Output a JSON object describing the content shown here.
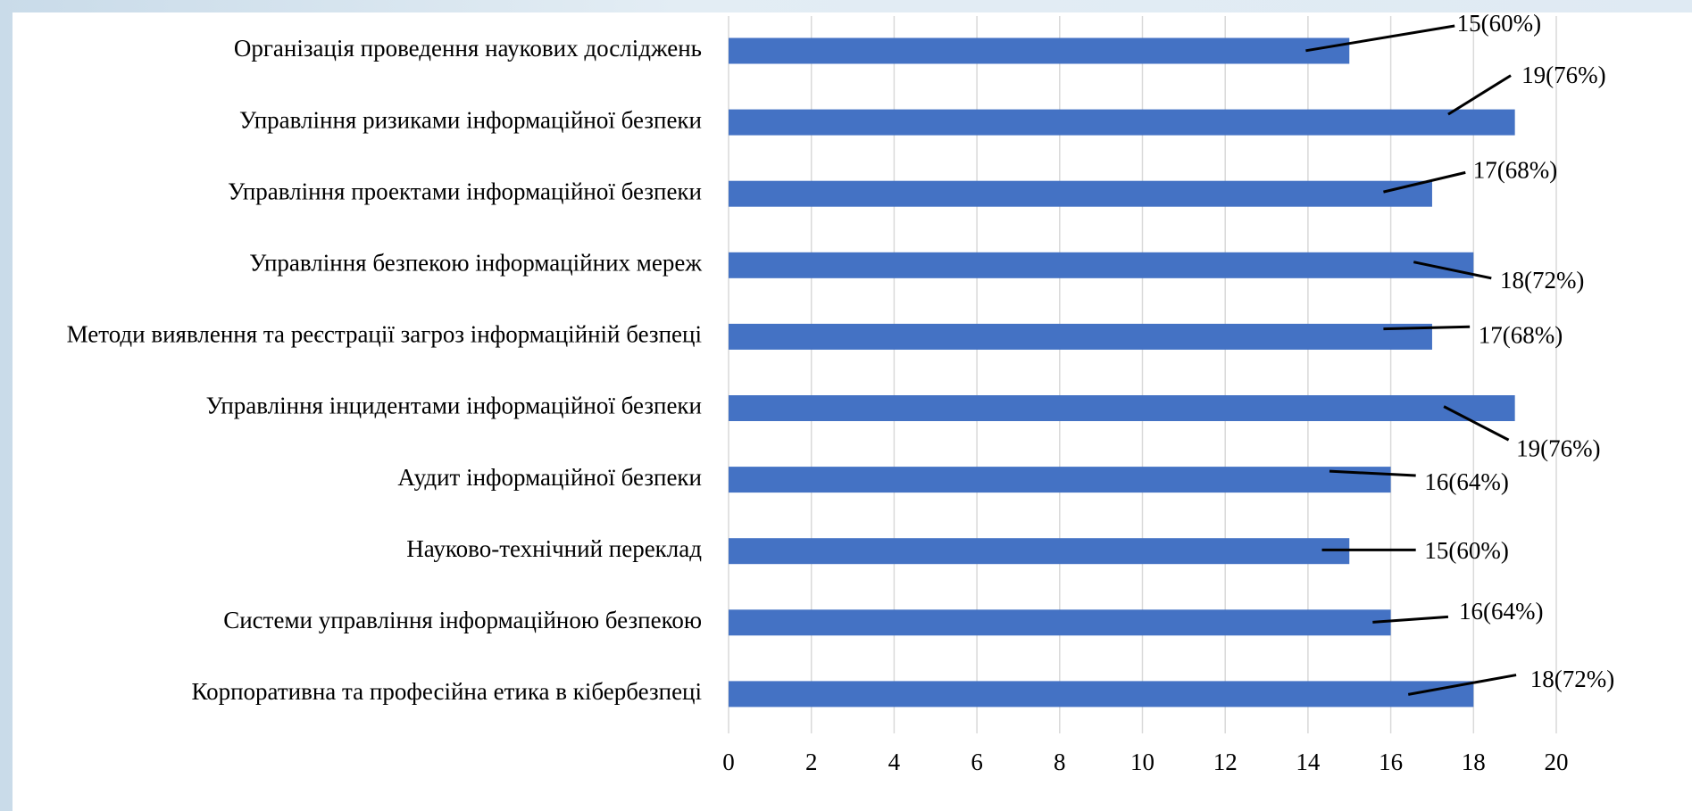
{
  "chart_data": {
    "type": "bar",
    "orientation": "horizontal",
    "categories": [
      "Організація проведення наукових досліджень",
      "Управління ризиками інформаційної безпеки",
      "Управління проектами інформаційної безпеки",
      "Управління безпекою інформаційних мереж",
      "Методи виявлення та реєстрації загроз інформаційній безпеці",
      "Управління інцидентами інформаційної безпеки",
      "Аудит інформаційної безпеки",
      "Науково-технічний переклад",
      "Системи управління інформаційною безпекою",
      "Корпоративна та професійна етика в кібербезпеці"
    ],
    "values": [
      15,
      19,
      17,
      18,
      17,
      19,
      16,
      15,
      16,
      18
    ],
    "value_labels": [
      "15(60%)",
      "19(76%)",
      "17(68%)",
      "18(72%)",
      "17(68%)",
      "19(76%)",
      "16(64%)",
      "15(60%)",
      "16(64%)",
      "18(72%)"
    ],
    "color": "#4472c4",
    "xlim": [
      0,
      20
    ],
    "xticks": [
      0,
      2,
      4,
      6,
      8,
      10,
      12,
      14,
      16,
      18,
      20
    ],
    "grid": true
  }
}
